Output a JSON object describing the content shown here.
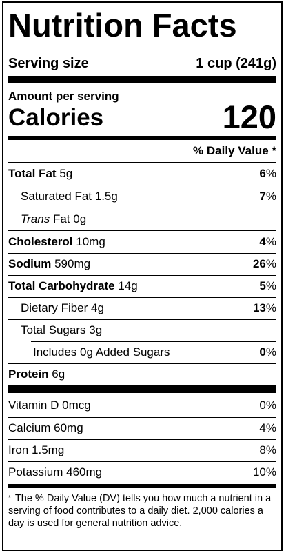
{
  "title": "Nutrition Facts",
  "serving": {
    "label": "Serving size",
    "value": "1 cup (241g)"
  },
  "amount_per_serving": "Amount per serving",
  "calories": {
    "label": "Calories",
    "value": "120"
  },
  "daily_value_header": "% Daily Value *",
  "nutrients": [
    {
      "name": "Total Fat",
      "amount": "5g",
      "dv_num": "6",
      "dv_unit": "%"
    },
    {
      "name": "Saturated Fat",
      "amount": "1.5g",
      "dv_num": "7",
      "dv_unit": "%"
    },
    {
      "name_italic": "Trans",
      "name": "Fat",
      "amount": "0g"
    },
    {
      "name": "Cholesterol",
      "amount": "10mg",
      "dv_num": "4",
      "dv_unit": "%"
    },
    {
      "name": "Sodium",
      "amount": "590mg",
      "dv_num": "26",
      "dv_unit": "%"
    },
    {
      "name": "Total Carbohydrate",
      "amount": "14g",
      "dv_num": "5",
      "dv_unit": "%"
    },
    {
      "name": "Dietary Fiber",
      "amount": "4g",
      "dv_num": "13",
      "dv_unit": "%"
    },
    {
      "name": "Total Sugars",
      "amount": "3g"
    },
    {
      "name": "Includes 0g Added Sugars",
      "dv_num": "0",
      "dv_unit": "%"
    },
    {
      "name": "Protein",
      "amount": "6g"
    }
  ],
  "vitamins": [
    {
      "name": "Vitamin D",
      "amount": "0mcg",
      "dv": "0%"
    },
    {
      "name": "Calcium",
      "amount": "60mg",
      "dv": "4%"
    },
    {
      "name": "Iron",
      "amount": "1.5mg",
      "dv": "8%"
    },
    {
      "name": "Potassium",
      "amount": "460mg",
      "dv": "10%"
    }
  ],
  "footnote": {
    "star": "*",
    "text": "The % Daily Value (DV) tells you how much a nutrient in a serving of food contributes to a daily diet. 2,000 calories a day is used for general nutrition advice."
  }
}
